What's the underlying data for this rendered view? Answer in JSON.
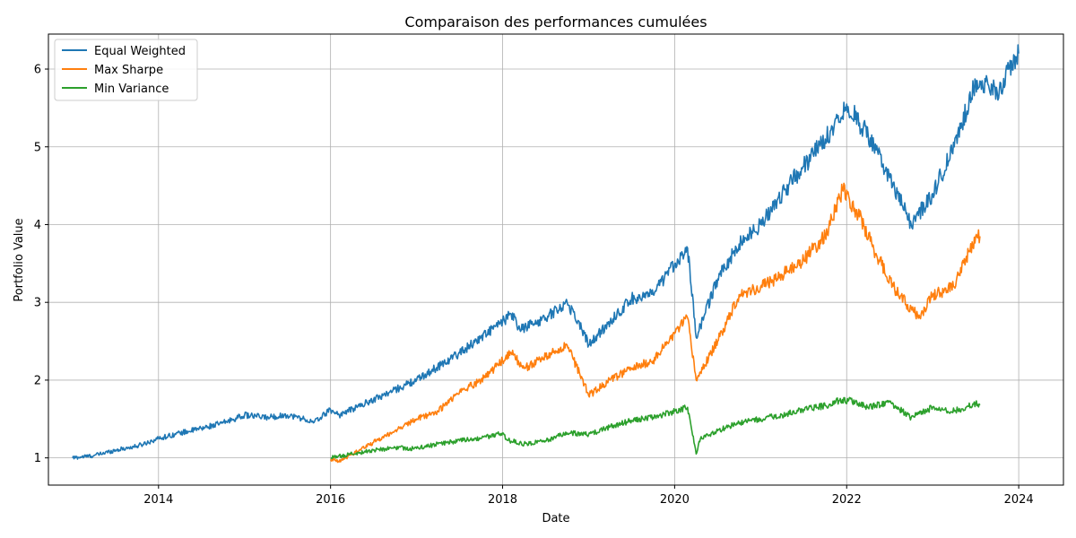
{
  "chart_data": {
    "type": "line",
    "title": "Comparaison des performances cumulées",
    "xlabel": "Date",
    "ylabel": "Portfolio Value",
    "xlim": [
      2012.72,
      2024.52
    ],
    "ylim": [
      0.65,
      6.45
    ],
    "x_ticks": [
      2014,
      2016,
      2018,
      2020,
      2022,
      2024
    ],
    "y_ticks": [
      1,
      2,
      3,
      4,
      5,
      6
    ],
    "grid": true,
    "legend_position": "top-left",
    "series": [
      {
        "name": "Equal Weighted",
        "color": "#1f77b4",
        "points": [
          [
            2013.0,
            1.0
          ],
          [
            2013.25,
            1.03
          ],
          [
            2013.5,
            1.1
          ],
          [
            2013.75,
            1.15
          ],
          [
            2014.0,
            1.25
          ],
          [
            2014.25,
            1.32
          ],
          [
            2014.5,
            1.38
          ],
          [
            2014.75,
            1.45
          ],
          [
            2015.0,
            1.55
          ],
          [
            2015.25,
            1.52
          ],
          [
            2015.5,
            1.55
          ],
          [
            2015.7,
            1.5
          ],
          [
            2015.8,
            1.45
          ],
          [
            2016.0,
            1.62
          ],
          [
            2016.1,
            1.55
          ],
          [
            2016.5,
            1.75
          ],
          [
            2017.0,
            2.0
          ],
          [
            2017.5,
            2.35
          ],
          [
            2018.0,
            2.75
          ],
          [
            2018.1,
            2.85
          ],
          [
            2018.2,
            2.65
          ],
          [
            2018.5,
            2.8
          ],
          [
            2018.75,
            3.0
          ],
          [
            2018.95,
            2.6
          ],
          [
            2019.0,
            2.45
          ],
          [
            2019.25,
            2.75
          ],
          [
            2019.5,
            3.05
          ],
          [
            2019.75,
            3.1
          ],
          [
            2020.0,
            3.5
          ],
          [
            2020.15,
            3.7
          ],
          [
            2020.25,
            2.55
          ],
          [
            2020.5,
            3.3
          ],
          [
            2020.75,
            3.75
          ],
          [
            2021.0,
            4.0
          ],
          [
            2021.25,
            4.4
          ],
          [
            2021.5,
            4.75
          ],
          [
            2021.75,
            5.1
          ],
          [
            2022.0,
            5.55
          ],
          [
            2022.25,
            5.15
          ],
          [
            2022.5,
            4.6
          ],
          [
            2022.75,
            4.0
          ],
          [
            2023.0,
            4.4
          ],
          [
            2023.25,
            5.0
          ],
          [
            2023.5,
            5.85
          ],
          [
            2023.75,
            5.7
          ],
          [
            2024.0,
            6.2
          ]
        ]
      },
      {
        "name": "Max Sharpe",
        "color": "#ff7f0e",
        "points": [
          [
            2016.0,
            0.98
          ],
          [
            2016.1,
            0.95
          ],
          [
            2016.25,
            1.05
          ],
          [
            2016.5,
            1.2
          ],
          [
            2016.75,
            1.35
          ],
          [
            2017.0,
            1.5
          ],
          [
            2017.25,
            1.6
          ],
          [
            2017.5,
            1.85
          ],
          [
            2017.75,
            2.0
          ],
          [
            2018.0,
            2.25
          ],
          [
            2018.1,
            2.35
          ],
          [
            2018.25,
            2.15
          ],
          [
            2018.5,
            2.3
          ],
          [
            2018.75,
            2.45
          ],
          [
            2018.95,
            1.95
          ],
          [
            2019.0,
            1.8
          ],
          [
            2019.25,
            2.0
          ],
          [
            2019.5,
            2.15
          ],
          [
            2019.75,
            2.25
          ],
          [
            2020.0,
            2.6
          ],
          [
            2020.15,
            2.8
          ],
          [
            2020.25,
            2.0
          ],
          [
            2020.5,
            2.5
          ],
          [
            2020.75,
            3.1
          ],
          [
            2021.0,
            3.2
          ],
          [
            2021.25,
            3.35
          ],
          [
            2021.5,
            3.55
          ],
          [
            2021.75,
            3.85
          ],
          [
            2021.95,
            4.45
          ],
          [
            2022.15,
            4.1
          ],
          [
            2022.35,
            3.6
          ],
          [
            2022.6,
            3.1
          ],
          [
            2022.85,
            2.8
          ],
          [
            2023.0,
            3.1
          ],
          [
            2023.25,
            3.2
          ],
          [
            2023.5,
            3.85
          ],
          [
            2023.55,
            3.85
          ]
        ]
      },
      {
        "name": "Min Variance",
        "color": "#2ca02c",
        "points": [
          [
            2016.0,
            1.0
          ],
          [
            2016.25,
            1.05
          ],
          [
            2016.5,
            1.1
          ],
          [
            2016.75,
            1.13
          ],
          [
            2017.0,
            1.12
          ],
          [
            2017.25,
            1.18
          ],
          [
            2017.5,
            1.22
          ],
          [
            2017.75,
            1.25
          ],
          [
            2018.0,
            1.32
          ],
          [
            2018.05,
            1.23
          ],
          [
            2018.25,
            1.18
          ],
          [
            2018.5,
            1.22
          ],
          [
            2018.75,
            1.32
          ],
          [
            2019.0,
            1.3
          ],
          [
            2019.25,
            1.4
          ],
          [
            2019.5,
            1.48
          ],
          [
            2019.75,
            1.52
          ],
          [
            2020.0,
            1.6
          ],
          [
            2020.15,
            1.65
          ],
          [
            2020.25,
            1.05
          ],
          [
            2020.3,
            1.25
          ],
          [
            2020.5,
            1.35
          ],
          [
            2020.75,
            1.45
          ],
          [
            2021.0,
            1.5
          ],
          [
            2021.25,
            1.55
          ],
          [
            2021.5,
            1.62
          ],
          [
            2021.75,
            1.67
          ],
          [
            2021.95,
            1.75
          ],
          [
            2022.1,
            1.72
          ],
          [
            2022.25,
            1.65
          ],
          [
            2022.5,
            1.72
          ],
          [
            2022.75,
            1.52
          ],
          [
            2023.0,
            1.65
          ],
          [
            2023.25,
            1.6
          ],
          [
            2023.5,
            1.7
          ],
          [
            2023.55,
            1.68
          ]
        ]
      }
    ]
  }
}
